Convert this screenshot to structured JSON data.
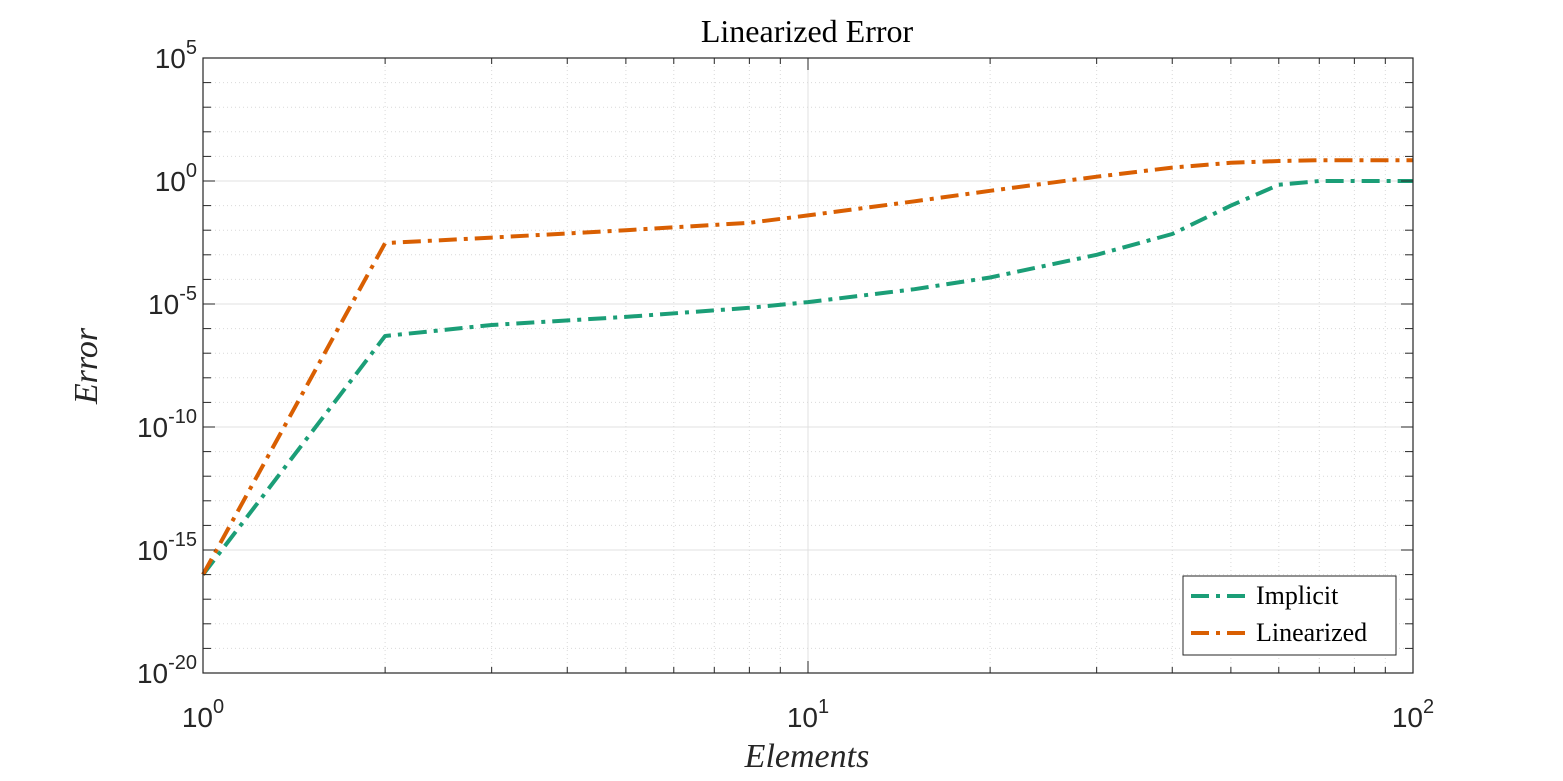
{
  "chart_data": {
    "type": "line",
    "title": "Linearized Error",
    "xlabel": "Elements",
    "ylabel": "Error",
    "xscale": "log",
    "yscale": "log",
    "xlim": [
      1,
      100
    ],
    "ylim": [
      1e-20,
      100000.0
    ],
    "grid": true,
    "minor_grid": true,
    "legend_position": "bottom-right",
    "x_ticks": [
      {
        "base": "10",
        "exp": "0"
      },
      {
        "base": "10",
        "exp": "1"
      },
      {
        "base": "10",
        "exp": "2"
      }
    ],
    "y_ticks": [
      {
        "base": "10",
        "exp": "-20"
      },
      {
        "base": "10",
        "exp": "-15"
      },
      {
        "base": "10",
        "exp": "-10"
      },
      {
        "base": "10",
        "exp": "-5"
      },
      {
        "base": "10",
        "exp": "0"
      },
      {
        "base": "10",
        "exp": "5"
      }
    ],
    "series": [
      {
        "name": "Implicit",
        "color": "#1b9e77",
        "linestyle": "dash-dot",
        "x": [
          1,
          2,
          3,
          5,
          8,
          10,
          15,
          20,
          30,
          40,
          50,
          60,
          70,
          80,
          100
        ],
        "y": [
          1e-16,
          5e-07,
          1.4e-06,
          3e-06,
          7e-06,
          1.2e-05,
          4e-05,
          0.00012,
          0.001,
          0.007,
          0.1,
          0.7,
          1.0,
          1.0,
          1.0
        ]
      },
      {
        "name": "Linearized",
        "color": "#d95f02",
        "linestyle": "dash-dot",
        "x": [
          1,
          2,
          3,
          5,
          8,
          10,
          15,
          20,
          30,
          40,
          50,
          60,
          70,
          80,
          100
        ],
        "y": [
          1e-16,
          0.003,
          0.005,
          0.01,
          0.02,
          0.04,
          0.15,
          0.4,
          1.5,
          3.5,
          5.5,
          6.5,
          7.0,
          7.0,
          7.0
        ]
      }
    ]
  }
}
